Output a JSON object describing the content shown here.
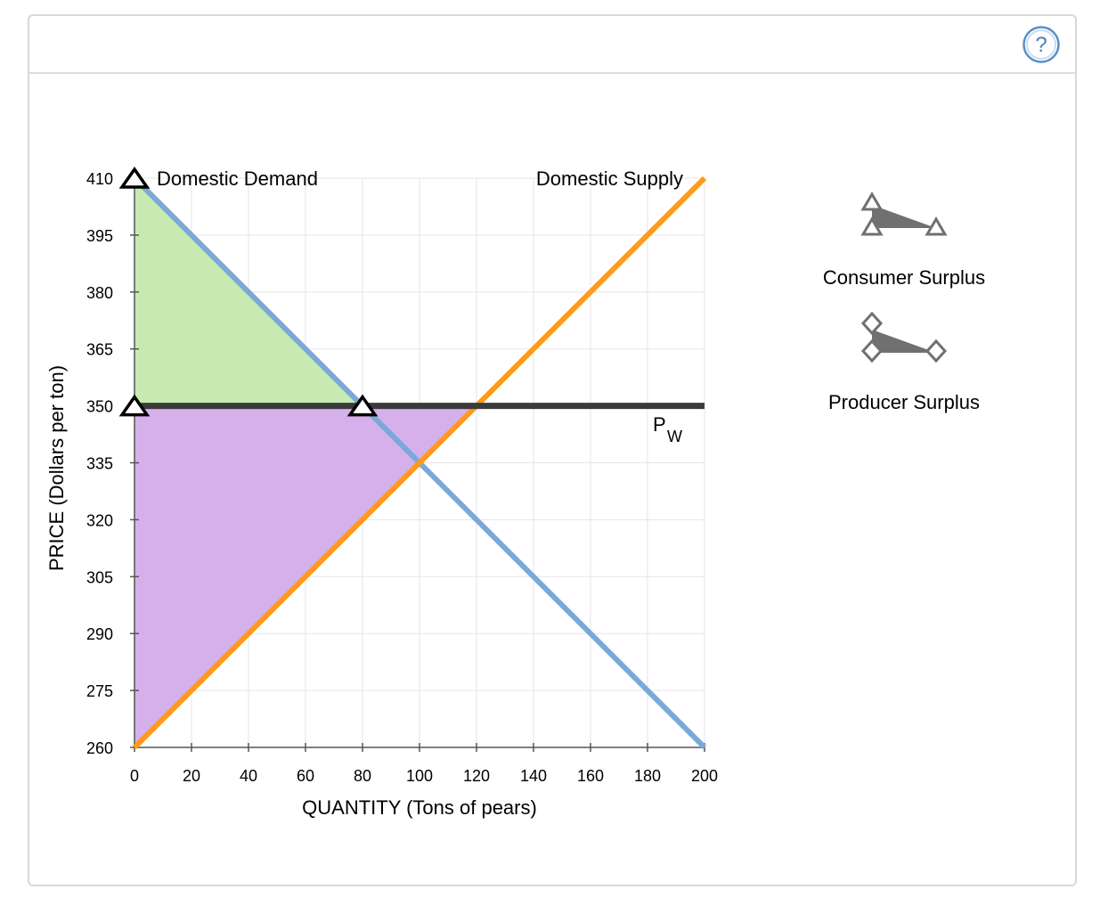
{
  "help": {
    "icon": "question-circle-icon",
    "symbol": "?"
  },
  "chart_data": {
    "type": "line",
    "xlabel": "QUANTITY (Tons of pears)",
    "ylabel": "PRICE (Dollars per ton)",
    "xlim": [
      0,
      200
    ],
    "ylim": [
      260,
      410
    ],
    "x_ticks": [
      0,
      20,
      40,
      60,
      80,
      100,
      120,
      140,
      160,
      180,
      200
    ],
    "y_ticks": [
      260,
      275,
      290,
      305,
      320,
      335,
      350,
      365,
      380,
      395,
      410
    ],
    "grid": true,
    "series": [
      {
        "name": "Domestic Demand",
        "color": "#7aa9d8",
        "points": [
          [
            0,
            410
          ],
          [
            200,
            260
          ]
        ]
      },
      {
        "name": "Domestic Supply",
        "color": "#ff9a1a",
        "points": [
          [
            0,
            260
          ],
          [
            200,
            410
          ]
        ]
      },
      {
        "name": "P",
        "subscript": "W",
        "color": "#3a3a3a",
        "points": [
          [
            0,
            350
          ],
          [
            200,
            350
          ]
        ]
      }
    ],
    "shaded_areas": [
      {
        "name": "Consumer Surplus",
        "color": "#c7eab3",
        "points": [
          [
            0,
            410
          ],
          [
            0,
            350
          ],
          [
            80,
            350
          ]
        ]
      },
      {
        "name": "Producer Surplus",
        "color": "#d5b0ea",
        "points": [
          [
            0,
            350
          ],
          [
            120,
            350
          ],
          [
            0,
            260
          ]
        ]
      }
    ],
    "markers": [
      {
        "shape": "triangle",
        "x": 0,
        "y": 410
      },
      {
        "shape": "triangle",
        "x": 0,
        "y": 350
      },
      {
        "shape": "triangle",
        "x": 80,
        "y": 350
      }
    ]
  },
  "tools": [
    {
      "label": "Consumer Surplus",
      "icon": "triangle-area-tool-icon",
      "marker": "triangle",
      "color": "#707070"
    },
    {
      "label": "Producer Surplus",
      "icon": "diamond-area-tool-icon",
      "marker": "diamond",
      "color": "#707070"
    }
  ]
}
